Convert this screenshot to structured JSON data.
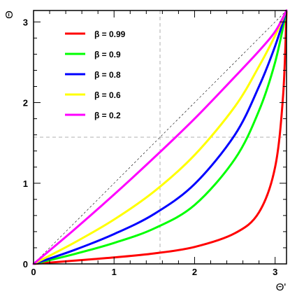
{
  "chart_data": {
    "type": "line",
    "title": "",
    "xlabel": "Θ'",
    "ylabel": "Θ",
    "xlim": [
      0,
      3.1416
    ],
    "ylim": [
      0,
      3.1416
    ],
    "x_ticks": [
      "0",
      "1",
      "2",
      "3"
    ],
    "y_ticks": [
      "0",
      "1",
      "2",
      "3"
    ],
    "grid": false,
    "legend_placement": "top-left",
    "reference_lines": {
      "diagonal": "y = x",
      "vertical_x": 1.5708,
      "horizontal_y": 1.5708
    },
    "series": [
      {
        "name": "β = 0.99",
        "color": "#ff0000",
        "beta": 0.99,
        "x": [
          0,
          0.5,
          1.0,
          1.5,
          2.0,
          2.5,
          2.8,
          3.0,
          3.1,
          3.1416
        ],
        "y": [
          0,
          0.04,
          0.08,
          0.13,
          0.21,
          0.38,
          0.64,
          1.2,
          2.1,
          3.1416
        ]
      },
      {
        "name": "β = 0.9",
        "color": "#00ff00",
        "beta": 0.9,
        "x": [
          0,
          0.5,
          1.0,
          1.5,
          2.0,
          2.5,
          2.8,
          3.0,
          3.1416
        ],
        "y": [
          0,
          0.12,
          0.26,
          0.44,
          0.73,
          1.3,
          1.9,
          2.5,
          3.1416
        ]
      },
      {
        "name": "β = 0.8",
        "color": "#0000ff",
        "beta": 0.8,
        "x": [
          0,
          0.5,
          1.0,
          1.5,
          2.0,
          2.5,
          2.8,
          3.0,
          3.1416
        ],
        "y": [
          0,
          0.17,
          0.37,
          0.62,
          0.99,
          1.6,
          2.2,
          2.7,
          3.1416
        ]
      },
      {
        "name": "β = 0.6",
        "color": "#ffff00",
        "beta": 0.6,
        "x": [
          0,
          0.5,
          1.0,
          1.5,
          2.0,
          2.5,
          2.8,
          3.0,
          3.1416
        ],
        "y": [
          0,
          0.26,
          0.55,
          0.9,
          1.35,
          1.95,
          2.45,
          2.83,
          3.1416
        ]
      },
      {
        "name": "β = 0.2",
        "color": "#ff00ff",
        "beta": 0.2,
        "x": [
          0,
          0.5,
          1.0,
          1.5,
          2.0,
          2.5,
          2.8,
          3.0,
          3.1416
        ],
        "y": [
          0,
          0.42,
          0.86,
          1.32,
          1.8,
          2.32,
          2.64,
          2.88,
          3.1416
        ]
      }
    ]
  }
}
